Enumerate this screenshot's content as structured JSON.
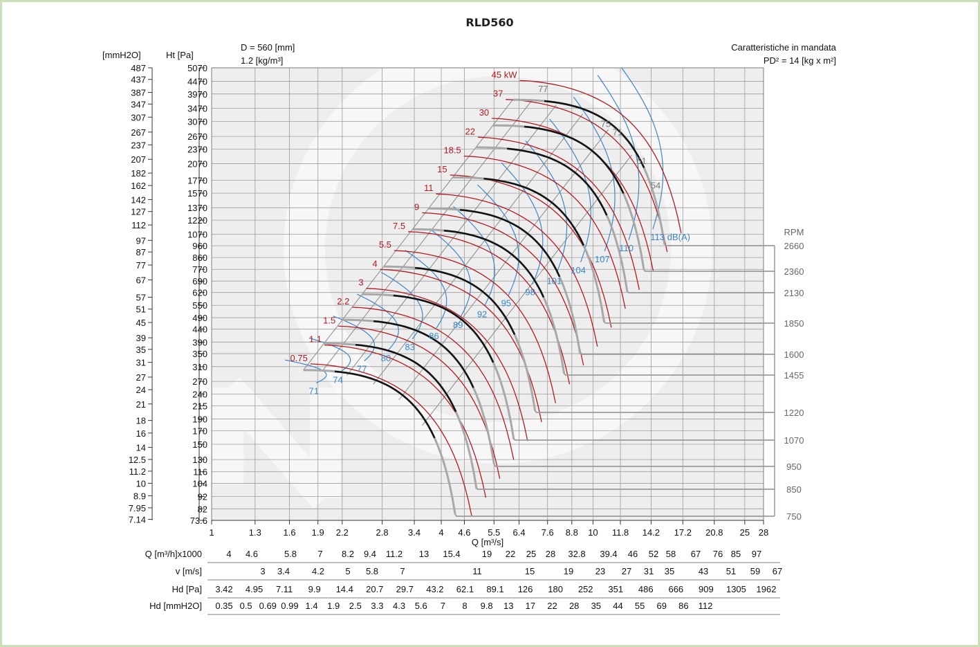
{
  "chart_data": {
    "type": "line",
    "title": "RLD560",
    "info_left": [
      "D = 560 [mm]",
      "1.2 [kg/m³]"
    ],
    "info_right": [
      "Caratteristiche in mandata",
      "PD² = 14 [kg x m²]"
    ],
    "xlabel": "Q [m³/s]",
    "y_left_label": "[mmH2O]",
    "y_right_label": "Ht [Pa]",
    "rpm_label": "RPM",
    "x_scale": "log",
    "y_scale": "log",
    "xlim": [
      1,
      28
    ],
    "ylim": [
      73.6,
      5070
    ],
    "x_ticks": [
      "1",
      "1.3",
      "1.6",
      "1.9",
      "2.2",
      "2.8",
      "3.4",
      "4",
      "4.6",
      "5.5",
      "6.4",
      "7.6",
      "8.8",
      "10",
      "11.8",
      "14.2",
      "17.2",
      "20.8",
      "25",
      "28"
    ],
    "x_tick_values": [
      1,
      1.3,
      1.6,
      1.9,
      2.2,
      2.8,
      3.4,
      4,
      4.6,
      5.5,
      6.4,
      7.6,
      8.8,
      10,
      11.8,
      14.2,
      17.2,
      20.8,
      25,
      28
    ],
    "pa_ticks": [
      "5070",
      "4470",
      "3970",
      "3470",
      "3070",
      "2670",
      "2370",
      "2070",
      "1770",
      "1570",
      "1370",
      "1220",
      "1070",
      "960",
      "860",
      "770",
      "690",
      "620",
      "550",
      "490",
      "440",
      "390",
      "350",
      "310",
      "270",
      "240",
      "215",
      "190",
      "170",
      "150",
      "130",
      "116",
      "104",
      "92",
      "82",
      "73.6"
    ],
    "mm_ticks": [
      "487",
      "437",
      "387",
      "347",
      "307",
      "267",
      "237",
      "207",
      "182",
      "162",
      "142",
      "127",
      "112",
      "97",
      "87",
      "77",
      "67",
      "57",
      "51",
      "45",
      "39",
      "35",
      "31",
      "27",
      "24",
      "21",
      "18",
      "16",
      "14",
      "12.5",
      "11.2",
      "10",
      "8.9",
      "7.95",
      "7.14"
    ],
    "rpm_values": [
      "2660",
      "2360",
      "2130",
      "1850",
      "1600",
      "1455",
      "1220",
      "1070",
      "950",
      "850",
      "750"
    ],
    "kw_labels": [
      "0.75",
      "1.1",
      "1.5",
      "2.2",
      "3",
      "4",
      "5.5",
      "7.5",
      "9",
      "11",
      "15",
      "18.5",
      "22",
      "30",
      "37",
      "45 kW"
    ],
    "db_labels": [
      "71",
      "74",
      "77",
      "80",
      "83",
      "86",
      "89",
      "92",
      "95",
      "98",
      "101",
      "104",
      "107",
      "110",
      "113 dB(A)"
    ],
    "eff_labels": [
      "77",
      "75",
      "71",
      "61",
      "54"
    ],
    "speed_curves": [
      {
        "rpm": "750",
        "q_start": 1.74,
        "q_end": 4.35,
        "p_start": 300,
        "p_end": 78
      },
      {
        "rpm": "850",
        "q_start": 1.97,
        "q_end": 4.95,
        "p_start": 385,
        "p_end": 99
      },
      {
        "rpm": "950",
        "q_start": 2.2,
        "q_end": 5.5,
        "p_start": 480,
        "p_end": 125
      },
      {
        "rpm": "1070",
        "q_start": 2.48,
        "q_end": 6.2,
        "p_start": 610,
        "p_end": 157
      },
      {
        "rpm": "1220",
        "q_start": 2.83,
        "q_end": 7.05,
        "p_start": 790,
        "p_end": 205
      },
      {
        "rpm": "1455",
        "q_start": 3.37,
        "q_end": 8.4,
        "p_start": 1120,
        "p_end": 290
      },
      {
        "rpm": "1600",
        "q_start": 3.71,
        "q_end": 9.25,
        "p_start": 1360,
        "p_end": 350
      },
      {
        "rpm": "1850",
        "q_start": 4.28,
        "q_end": 10.7,
        "p_start": 1820,
        "p_end": 470
      },
      {
        "rpm": "2130",
        "q_start": 4.93,
        "q_end": 12.3,
        "p_start": 2410,
        "p_end": 625
      },
      {
        "rpm": "2360",
        "q_start": 5.47,
        "q_end": 13.6,
        "p_start": 2960,
        "p_end": 765
      },
      {
        "rpm": "2660",
        "q_start": 6.17,
        "q_end": 15.4,
        "p_start": 3760,
        "p_end": 975
      }
    ]
  },
  "table": {
    "rows": [
      {
        "label": "Q [m³/h]x1000",
        "values": [
          "4",
          "4.6",
          "5.8",
          "7",
          "8.2",
          "9.4",
          "11.2",
          "13",
          "15.4",
          "19",
          "22",
          "25",
          "28",
          "32.8",
          "39.4",
          "46",
          "52",
          "58",
          "67",
          "76",
          "85",
          "97"
        ]
      },
      {
        "label": "v [m/s]",
        "values": [
          "3",
          "3.4",
          "4.2",
          "5",
          "5.8",
          "7",
          "11",
          "15",
          "19",
          "23",
          "27",
          "31",
          "35",
          "43",
          "51",
          "59",
          "67"
        ]
      },
      {
        "label": "Hd [Pa]",
        "values": [
          "3.42",
          "4.95",
          "7.11",
          "9.9",
          "14.4",
          "20.7",
          "29.7",
          "43.2",
          "62.1",
          "89.1",
          "126",
          "180",
          "252",
          "351",
          "486",
          "666",
          "909",
          "1305",
          "1962"
        ]
      },
      {
        "label": "Hd [mmH2O]",
        "values": [
          "0.35",
          "0.5",
          "0.69",
          "0.99",
          "1.4",
          "1.9",
          "2.5",
          "3.3",
          "4.3",
          "5.6",
          "7",
          "8",
          "9.8",
          "13",
          "17",
          "22",
          "28",
          "35",
          "44",
          "55",
          "69",
          "86",
          "112"
        ]
      }
    ]
  },
  "colors": {
    "speed_curve": "#111111",
    "power_curve": "#b3191f",
    "noise_curve": "#3a86c8",
    "efficiency_line": "#888888",
    "rpm_leader": "#9a9a9a",
    "grid": "#9c9c9c",
    "plot_bg": "#eeeeee",
    "frame": "#c9e0b6"
  }
}
